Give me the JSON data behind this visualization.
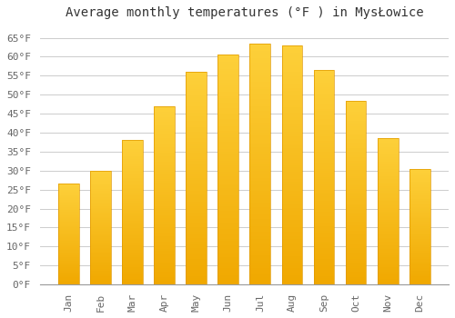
{
  "title": "Average monthly temperatures (°F ) in MysŁowice",
  "months": [
    "Jan",
    "Feb",
    "Mar",
    "Apr",
    "May",
    "Jun",
    "Jul",
    "Aug",
    "Sep",
    "Oct",
    "Nov",
    "Dec"
  ],
  "values": [
    26.5,
    30.0,
    38.0,
    47.0,
    56.0,
    60.5,
    63.5,
    63.0,
    56.5,
    48.5,
    38.5,
    30.5
  ],
  "bar_color_top": "#FDD03A",
  "bar_color_bottom": "#F0A800",
  "bar_edge_color": "#E09800",
  "background_color": "#FFFFFF",
  "grid_color": "#CCCCCC",
  "text_color": "#666666",
  "yticks": [
    0,
    5,
    10,
    15,
    20,
    25,
    30,
    35,
    40,
    45,
    50,
    55,
    60,
    65
  ],
  "ylim": [
    0,
    68
  ],
  "title_fontsize": 10,
  "tick_fontsize": 8,
  "font_family": "monospace",
  "bar_width": 0.65
}
